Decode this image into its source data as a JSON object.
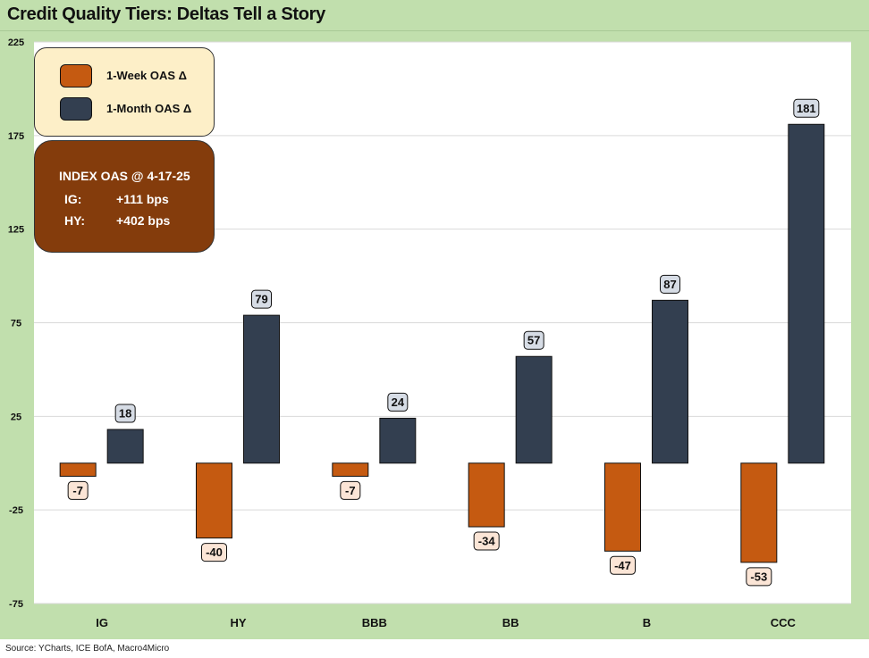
{
  "title": "Credit Quality Tiers: Deltas Tell a Story",
  "source": "Source: YCharts, ICE BofA, Macro4Micro",
  "legend": {
    "items": [
      {
        "label": "1-Week OAS Δ",
        "color": "#c55a11"
      },
      {
        "label": "1-Month OAS Δ",
        "color": "#333f50"
      }
    ]
  },
  "info": {
    "title": "INDEX OAS @ 4-17-25",
    "rows": [
      {
        "key": "IG:",
        "value": "+111 bps"
      },
      {
        "key": "HY:",
        "value": "+402 bps"
      }
    ]
  },
  "colors": {
    "week": "#c55a11",
    "month": "#333f50",
    "week_label_bg": "#fbe5d6",
    "month_label_bg": "#d6dce5",
    "background": "#c1dfad"
  },
  "chart_data": {
    "type": "bar",
    "categories": [
      "IG",
      "HY",
      "BBB",
      "BB",
      "B",
      "CCC"
    ],
    "series": [
      {
        "name": "1-Week OAS Δ",
        "values": [
          -7,
          -40,
          -7,
          -34,
          -47,
          -53
        ]
      },
      {
        "name": "1-Month OAS Δ",
        "values": [
          18,
          79,
          24,
          57,
          87,
          181
        ]
      }
    ],
    "ylim": [
      -75,
      225
    ],
    "yticks": [
      -75,
      -25,
      25,
      75,
      125,
      175,
      225
    ],
    "grid": true,
    "legend_position": "top-left"
  }
}
